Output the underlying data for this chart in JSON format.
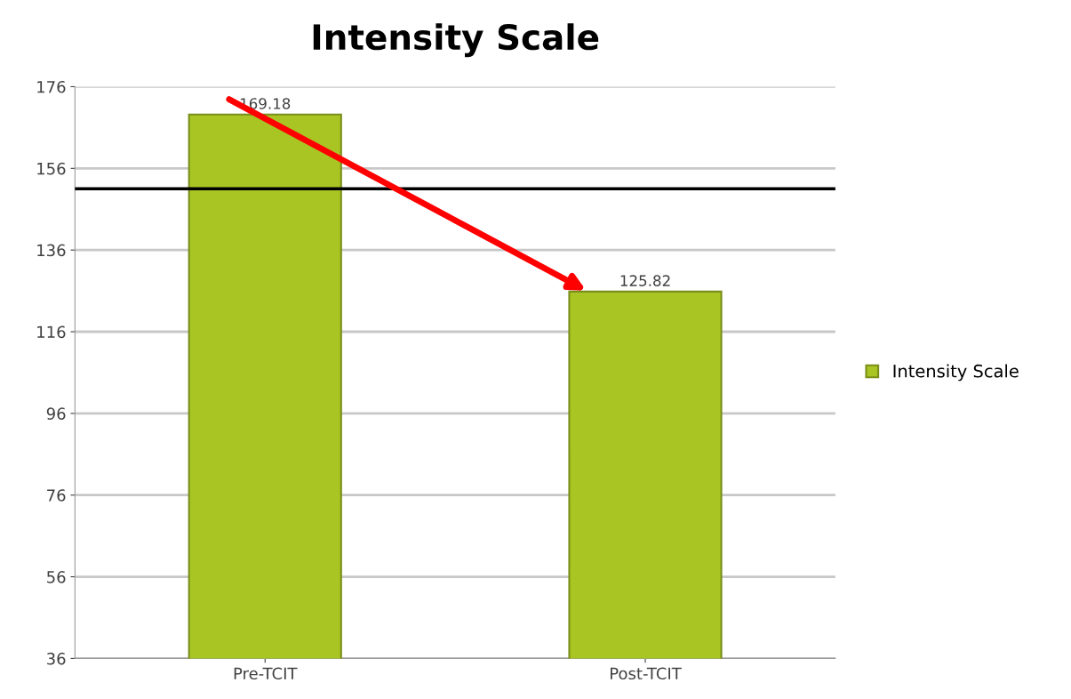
{
  "chart_data": {
    "type": "bar",
    "title": "Intensity Scale",
    "categories": [
      "Pre-TCIT",
      "Post-TCIT"
    ],
    "series": [
      {
        "name": "Intensity Scale",
        "color": "#a9c523",
        "values": [
          169.18,
          125.82
        ]
      }
    ],
    "ylim": [
      36,
      176
    ],
    "yticks": [
      36,
      56,
      76,
      96,
      116,
      136,
      156,
      176
    ],
    "grid": "y",
    "legend": "right",
    "data_labels": true,
    "ref_lines": [
      {
        "axis": "y",
        "value": 151,
        "color": "#000000"
      }
    ]
  }
}
